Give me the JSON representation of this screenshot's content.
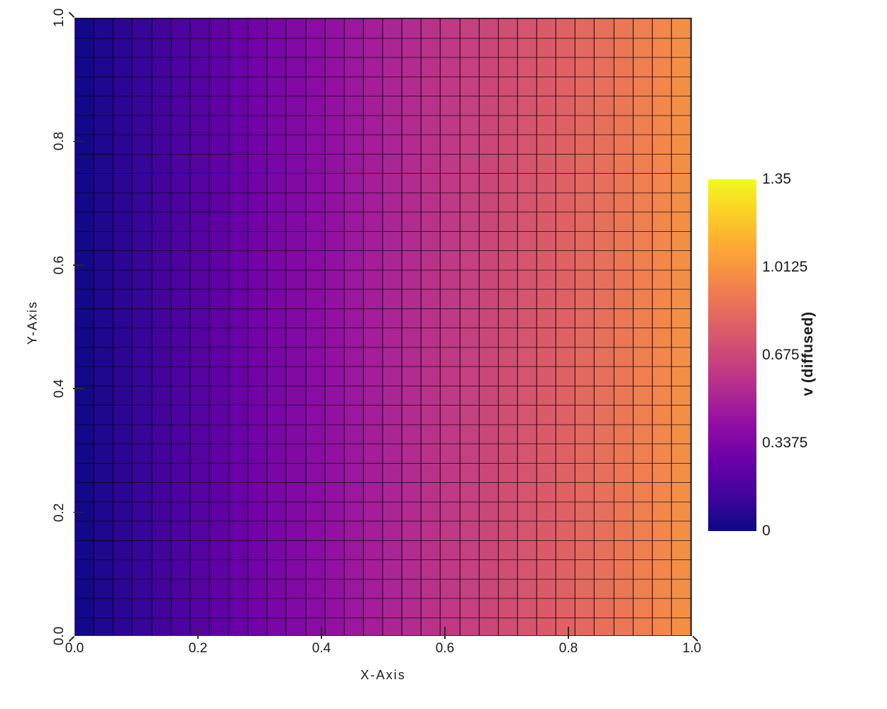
{
  "chart_data": {
    "type": "heatmap",
    "title": "",
    "xlabel": "X-Axis",
    "ylabel": "Y-Axis",
    "colorbar_label": "v (diffused)",
    "colormap": "plasma",
    "color_limits": [
      0,
      1.35
    ],
    "x_range": [
      0,
      1
    ],
    "y_range": [
      0,
      1
    ],
    "grid": {
      "nx": 32,
      "ny": 32,
      "cell_outline": true
    },
    "x_ticks": {
      "values": [
        0.0,
        0.2,
        0.4,
        0.6,
        0.8,
        1.0
      ],
      "labels": [
        "0.0",
        "0.2",
        "0.4",
        "0.6",
        "0.8",
        "1.0"
      ]
    },
    "y_ticks": {
      "values": [
        0.0,
        0.2,
        0.4,
        0.6,
        0.8,
        1.0
      ],
      "labels": [
        "0.0",
        "0.2",
        "0.4",
        "0.6",
        "0.8",
        "1.0"
      ]
    },
    "colorbar_ticks": {
      "values": [
        0,
        0.3375,
        0.675,
        1.0125,
        1.35
      ],
      "labels": [
        "0",
        "0.3375",
        "0.675",
        "1.0125",
        "1.35"
      ]
    },
    "value_model": "v(x,y) = x; linear horizontal gradient, constant in y; sampled at tile centers",
    "column_values": [
      0.015625,
      0.046875,
      0.078125,
      0.109375,
      0.140625,
      0.171875,
      0.203125,
      0.234375,
      0.265625,
      0.296875,
      0.328125,
      0.359375,
      0.390625,
      0.421875,
      0.453125,
      0.484375,
      0.515625,
      0.546875,
      0.578125,
      0.609375,
      0.640625,
      0.671875,
      0.703125,
      0.734375,
      0.765625,
      0.796875,
      0.828125,
      0.859375,
      0.890625,
      0.921875,
      0.953125,
      0.984375
    ],
    "colormap_stops": [
      {
        "t": 0.0,
        "color": "#0d0887"
      },
      {
        "t": 0.1,
        "color": "#41049d"
      },
      {
        "t": 0.2,
        "color": "#6a00a8"
      },
      {
        "t": 0.3,
        "color": "#8f0da4"
      },
      {
        "t": 0.4,
        "color": "#b12a90"
      },
      {
        "t": 0.5,
        "color": "#cc4778"
      },
      {
        "t": 0.6,
        "color": "#e16462"
      },
      {
        "t": 0.7,
        "color": "#f2844b"
      },
      {
        "t": 0.8,
        "color": "#fca636"
      },
      {
        "t": 0.9,
        "color": "#fcce25"
      },
      {
        "t": 1.0,
        "color": "#f0f921"
      }
    ]
  },
  "colors": {
    "background": "#ffffff",
    "text": "#1a1a1a",
    "tick": "#2a2a2a",
    "grid_line": "rgba(0,0,0,0.7)"
  }
}
